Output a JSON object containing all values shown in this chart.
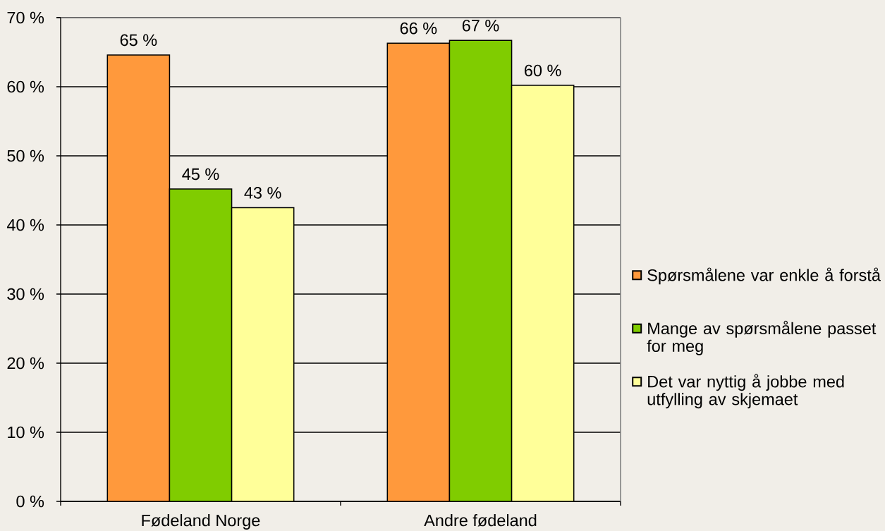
{
  "chart_data": {
    "type": "bar",
    "categories": [
      "Fødeland Norge",
      "Andre fødeland"
    ],
    "series": [
      {
        "name": "Spørsmålene var enkle å forstå",
        "color": "#ff993c",
        "values": [
          64.6,
          66.3
        ],
        "value_labels": [
          "65 %",
          "66 %"
        ]
      },
      {
        "name": "Mange av spørsmålene passet for meg",
        "color": "#80cc00",
        "values": [
          45.2,
          66.7
        ],
        "value_labels": [
          "45 %",
          "67 %"
        ]
      },
      {
        "name": "Det var nyttig å jobbe med utfylling av skjemaet",
        "color": "#ffff99",
        "values": [
          42.5,
          60.2
        ],
        "value_labels": [
          "43 %",
          "60 %"
        ]
      }
    ],
    "ylim": [
      0,
      70
    ],
    "yticks": [
      {
        "value": 0,
        "label": "0 %"
      },
      {
        "value": 10,
        "label": "10 %"
      },
      {
        "value": 20,
        "label": "20 %"
      },
      {
        "value": 30,
        "label": "30 %"
      },
      {
        "value": 40,
        "label": "40 %"
      },
      {
        "value": 50,
        "label": "50 %"
      },
      {
        "value": 60,
        "label": "60 %"
      },
      {
        "value": 70,
        "label": "70 %"
      }
    ],
    "grid": "y",
    "legend": "right"
  }
}
